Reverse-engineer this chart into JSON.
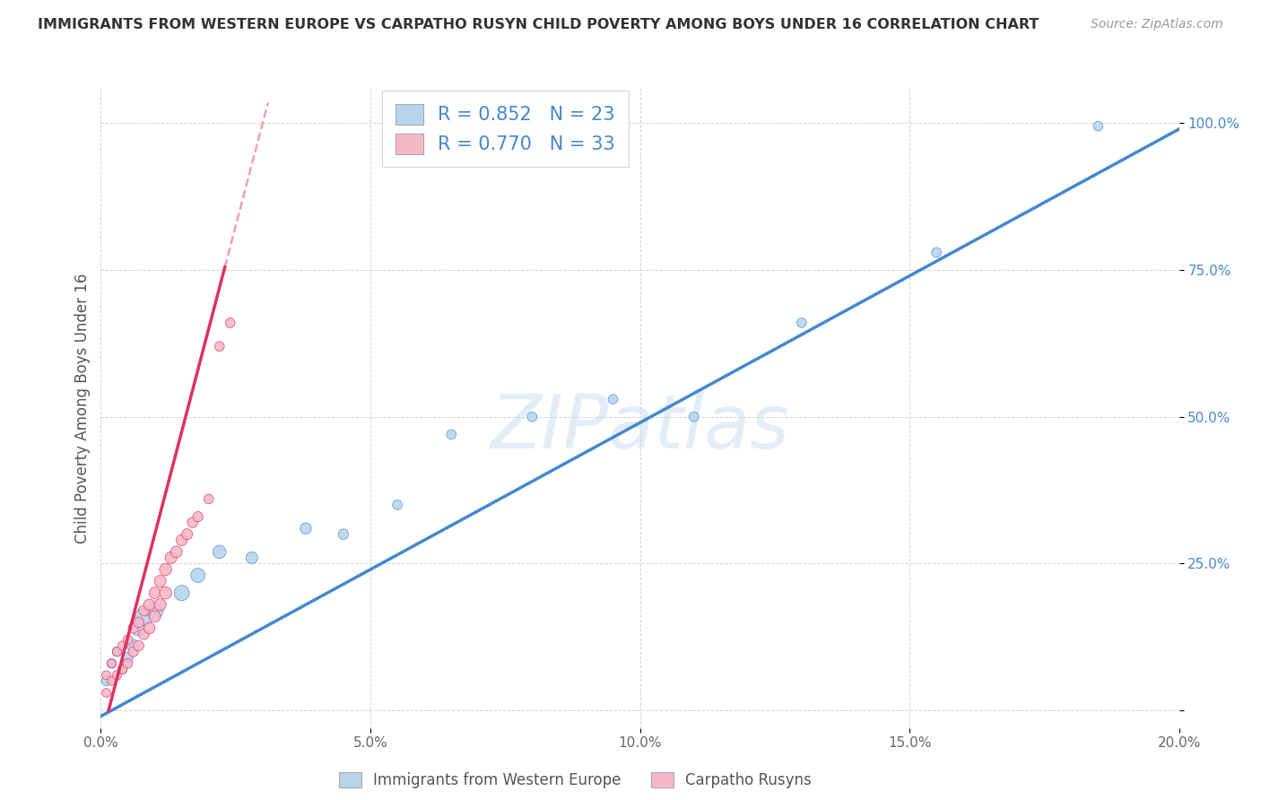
{
  "title": "IMMIGRANTS FROM WESTERN EUROPE VS CARPATHO RUSYN CHILD POVERTY AMONG BOYS UNDER 16 CORRELATION CHART",
  "source": "Source: ZipAtlas.com",
  "ylabel": "Child Poverty Among Boys Under 16",
  "xlim": [
    0.0,
    0.2
  ],
  "ylim": [
    -0.03,
    1.06
  ],
  "xtick_vals": [
    0.0,
    0.05,
    0.1,
    0.15,
    0.2
  ],
  "xtick_labels": [
    "0.0%",
    "5.0%",
    "10.0%",
    "15.0%",
    "20.0%"
  ],
  "ytick_vals": [
    0.0,
    0.25,
    0.5,
    0.75,
    1.0
  ],
  "ytick_labels": [
    "",
    "25.0%",
    "50.0%",
    "75.0%",
    "100.0%"
  ],
  "blue_R": "0.852",
  "blue_N": "23",
  "pink_R": "0.770",
  "pink_N": "33",
  "blue_scatter_color": "#b8d4ec",
  "blue_line_color": "#4488cc",
  "pink_scatter_color": "#f5b8c8",
  "pink_line_color": "#e03060",
  "pink_dash_color": "#f0a0b0",
  "yaxis_tick_color": "#4488cc",
  "watermark_text": "ZIPatlas",
  "blue_line_slope": 5.0,
  "blue_line_intercept": -0.01,
  "pink_line_slope": 35.0,
  "pink_line_intercept": -0.05,
  "blue_x": [
    0.001,
    0.002,
    0.003,
    0.004,
    0.005,
    0.006,
    0.007,
    0.008,
    0.01,
    0.015,
    0.018,
    0.022,
    0.028,
    0.038,
    0.045,
    0.055,
    0.065,
    0.08,
    0.095,
    0.11,
    0.13,
    0.155,
    0.185
  ],
  "blue_y": [
    0.05,
    0.08,
    0.1,
    0.07,
    0.09,
    0.11,
    0.14,
    0.16,
    0.17,
    0.2,
    0.23,
    0.27,
    0.26,
    0.31,
    0.3,
    0.35,
    0.47,
    0.5,
    0.53,
    0.5,
    0.66,
    0.78,
    0.995
  ],
  "blue_s": [
    60,
    60,
    60,
    60,
    70,
    100,
    150,
    200,
    180,
    150,
    130,
    110,
    90,
    80,
    70,
    60,
    60,
    60,
    60,
    60,
    60,
    60,
    60
  ],
  "pink_x": [
    0.001,
    0.001,
    0.002,
    0.002,
    0.003,
    0.003,
    0.004,
    0.004,
    0.005,
    0.005,
    0.006,
    0.006,
    0.007,
    0.007,
    0.008,
    0.008,
    0.009,
    0.009,
    0.01,
    0.01,
    0.011,
    0.011,
    0.012,
    0.012,
    0.013,
    0.014,
    0.015,
    0.016,
    0.017,
    0.018,
    0.02,
    0.022,
    0.024
  ],
  "pink_y": [
    0.03,
    0.06,
    0.05,
    0.08,
    0.06,
    0.1,
    0.07,
    0.11,
    0.08,
    0.12,
    0.1,
    0.14,
    0.11,
    0.15,
    0.13,
    0.17,
    0.14,
    0.18,
    0.16,
    0.2,
    0.18,
    0.22,
    0.2,
    0.24,
    0.26,
    0.27,
    0.29,
    0.3,
    0.32,
    0.33,
    0.36,
    0.62,
    0.66
  ],
  "pink_s": [
    50,
    50,
    50,
    50,
    55,
    55,
    55,
    55,
    60,
    60,
    65,
    65,
    70,
    70,
    75,
    75,
    80,
    80,
    85,
    85,
    90,
    90,
    95,
    95,
    90,
    85,
    80,
    75,
    70,
    65,
    60,
    60,
    60
  ]
}
